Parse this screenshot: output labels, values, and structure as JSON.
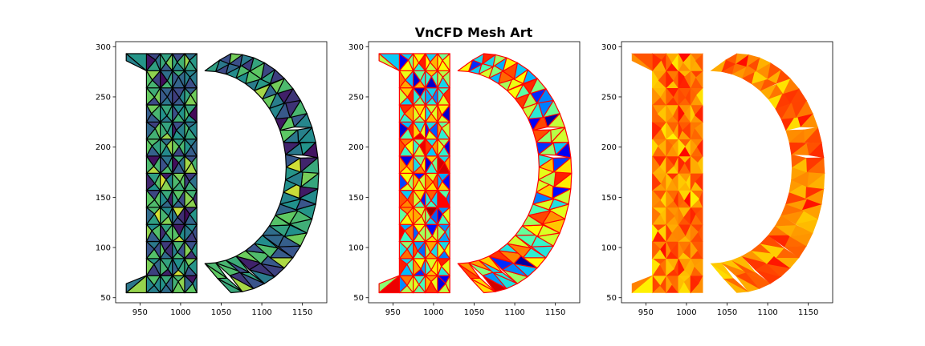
{
  "figure": {
    "title": "VnCFD Mesh Art"
  },
  "chart_data": [
    {
      "type": "heatmap",
      "subtype": "triangular-mesh",
      "panel": "left",
      "colormap": "viridis",
      "mesh_edge_color": "#000000",
      "xlim": [
        920,
        1180
      ],
      "ylim": [
        45,
        305
      ],
      "xticks": [
        950,
        1000,
        1050,
        1100,
        1150
      ],
      "yticks": [
        50,
        100,
        150,
        200,
        250,
        300
      ],
      "xtick_labels": [
        "950",
        "1000",
        "1050",
        "1100",
        "1150"
      ],
      "ytick_labels": [
        "50",
        "100",
        "150",
        "200",
        "250",
        "300"
      ],
      "grid": false,
      "shape_outline_x": [
        933,
        960,
        975,
        987,
        988,
        988,
        986,
        976,
        958,
        933,
        933,
        1062,
        1063,
        1040,
        1025,
        1020,
        1020,
        1025,
        1040,
        1062,
        1063,
        933
      ],
      "shape_outline_y": [
        55,
        55,
        65,
        85,
        150,
        230,
        282,
        292,
        293,
        293,
        55,
        55,
        55,
        60,
        70,
        90,
        270,
        283,
        288,
        293,
        293,
        293
      ]
    },
    {
      "type": "heatmap",
      "subtype": "triangular-mesh",
      "panel": "center",
      "colormap": "jet",
      "mesh_edge_color": "#ff0000",
      "xlim": [
        920,
        1180
      ],
      "ylim": [
        45,
        305
      ],
      "xticks": [
        950,
        1000,
        1050,
        1100,
        1150
      ],
      "yticks": [
        50,
        100,
        150,
        200,
        250,
        300
      ],
      "xtick_labels": [
        "950",
        "1000",
        "1050",
        "1100",
        "1150"
      ],
      "ytick_labels": [
        "50",
        "100",
        "150",
        "200",
        "250",
        "300"
      ],
      "grid": false
    },
    {
      "type": "heatmap",
      "subtype": "triangular-mesh",
      "panel": "right",
      "colormap": "autumn",
      "mesh_edge_color": "none",
      "xlim": [
        920,
        1180
      ],
      "ylim": [
        45,
        305
      ],
      "xticks": [
        950,
        1000,
        1050,
        1100,
        1150
      ],
      "yticks": [
        50,
        100,
        150,
        200,
        250,
        300
      ],
      "xtick_labels": [
        "950",
        "1000",
        "1050",
        "1100",
        "1150"
      ],
      "ytick_labels": [
        "50",
        "100",
        "150",
        "200",
        "250",
        "300"
      ],
      "grid": false
    }
  ],
  "colors": {
    "viridis": [
      "#440154",
      "#3b528b",
      "#21918c",
      "#5ec962",
      "#fde725"
    ],
    "jet": [
      "#00007f",
      "#0000ff",
      "#00bfff",
      "#3fffbf",
      "#bfff3f",
      "#ffff00",
      "#ff7f00",
      "#ff0000",
      "#7f0000"
    ],
    "autumn": [
      "#ff0000",
      "#ff4000",
      "#ff8000",
      "#ffbf00",
      "#ffff00"
    ]
  }
}
